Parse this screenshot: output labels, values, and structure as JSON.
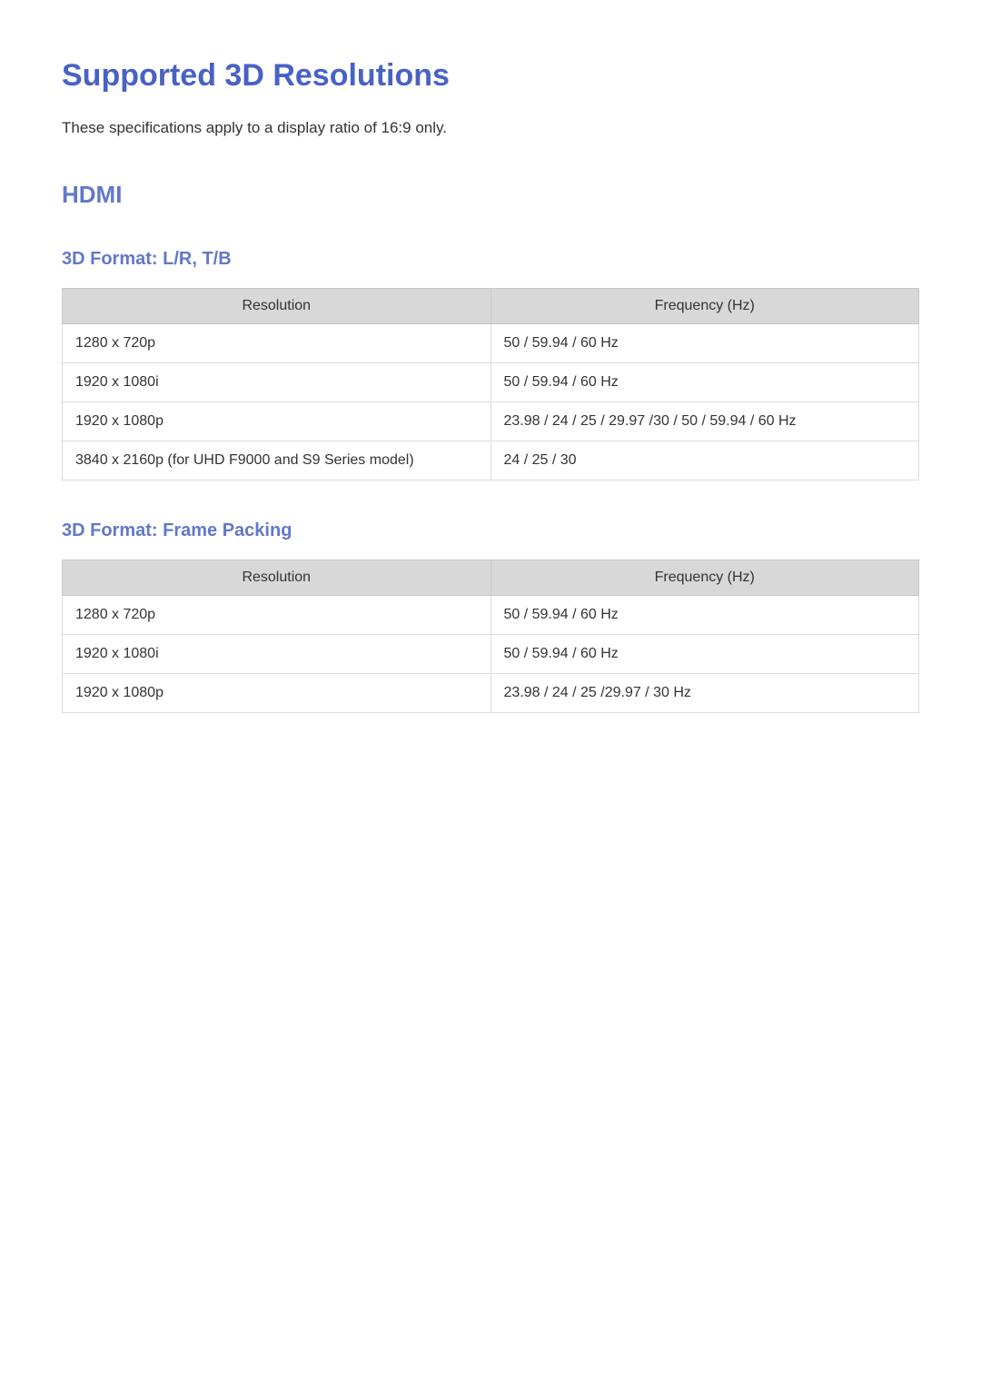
{
  "page": {
    "title": "Supported 3D Resolutions",
    "intro": "These specifications apply to a display ratio of 16:9 only.",
    "section_heading": "HDMI"
  },
  "colors": {
    "title": "#4862c4",
    "subheading": "#6278c8",
    "table_header_bg": "#d8d8d8",
    "table_border": "#dcdcdc",
    "text": "#333333",
    "background": "#ffffff"
  },
  "tables": {
    "lr_tb": {
      "heading": "3D Format: L/R, T/B",
      "columns": [
        "Resolution",
        "Frequency (Hz)"
      ],
      "rows": [
        [
          "1280 x 720p",
          "50 / 59.94 / 60 Hz"
        ],
        [
          "1920 x 1080i",
          "50 / 59.94 / 60 Hz"
        ],
        [
          "1920 x 1080p",
          "23.98 / 24 / 25 / 29.97 /30 / 50 / 59.94 / 60 Hz"
        ],
        [
          "3840 x 2160p (for UHD F9000 and S9 Series model)",
          "24 / 25 / 30"
        ]
      ]
    },
    "frame_packing": {
      "heading": "3D Format: Frame Packing",
      "columns": [
        "Resolution",
        "Frequency (Hz)"
      ],
      "rows": [
        [
          "1280 x 720p",
          "50 / 59.94 / 60 Hz"
        ],
        [
          "1920 x 1080i",
          "50 / 59.94 / 60 Hz"
        ],
        [
          "1920 x 1080p",
          "23.98 / 24 / 25 /29.97 / 30 Hz"
        ]
      ]
    }
  }
}
